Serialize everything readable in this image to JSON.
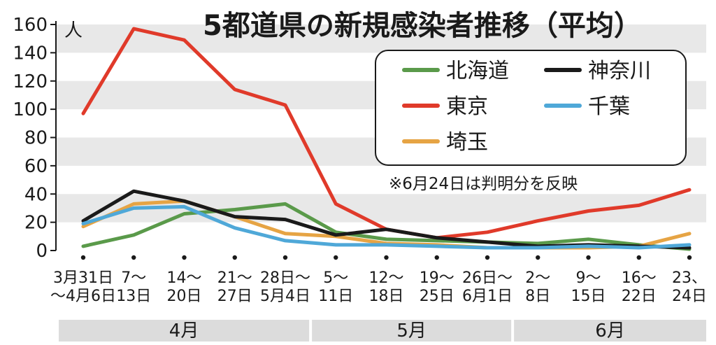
{
  "chart_data": {
    "type": "line",
    "title": "5都道県の新規感染者推移（平均）",
    "ylabel": "人",
    "ylim": [
      0,
      160
    ],
    "yticks": [
      0,
      20,
      40,
      60,
      80,
      100,
      120,
      140,
      160
    ],
    "grid": "horizontal-bands",
    "legend_position": "top-right",
    "categories": [
      [
        "3月31日",
        "～4月6日"
      ],
      [
        "7～",
        "13日"
      ],
      [
        "14～",
        "20日"
      ],
      [
        "21～",
        "27日"
      ],
      [
        "28日～",
        "5月4日"
      ],
      [
        "5～",
        "11日"
      ],
      [
        "12～",
        "18日"
      ],
      [
        "19～",
        "25日"
      ],
      [
        "26日～",
        "6月1日"
      ],
      [
        "2～",
        "8日"
      ],
      [
        "9～",
        "15日"
      ],
      [
        "16～",
        "22日"
      ],
      [
        "23、",
        "24日"
      ]
    ],
    "months": [
      {
        "label": "4月",
        "from": 0,
        "to": 4
      },
      {
        "label": "5月",
        "from": 5,
        "to": 8
      },
      {
        "label": "6月",
        "from": 9,
        "to": 12
      }
    ],
    "series": [
      {
        "name": "北海道",
        "color": "#5a9a4a",
        "values": [
          3,
          11,
          26,
          29,
          33,
          13,
          8,
          7,
          6,
          5,
          8,
          4,
          1
        ]
      },
      {
        "name": "東京",
        "color": "#e03a2a",
        "values": [
          97,
          157,
          149,
          114,
          103,
          33,
          15,
          9,
          13,
          21,
          28,
          32,
          43
        ]
      },
      {
        "name": "埼玉",
        "color": "#e6a444",
        "values": [
          17,
          33,
          35,
          24,
          12,
          10,
          5,
          4,
          2,
          2,
          2,
          3,
          12
        ]
      },
      {
        "name": "神奈川",
        "color": "#1a1a1a",
        "values": [
          21,
          42,
          35,
          24,
          22,
          11,
          15,
          9,
          6,
          3,
          4,
          3,
          2
        ]
      },
      {
        "name": "千葉",
        "color": "#4fa8d8",
        "values": [
          19,
          30,
          31,
          16,
          7,
          4,
          4,
          3,
          2,
          2,
          3,
          2,
          4
        ]
      }
    ],
    "annotation": "※6月24日は判明分を反映"
  }
}
